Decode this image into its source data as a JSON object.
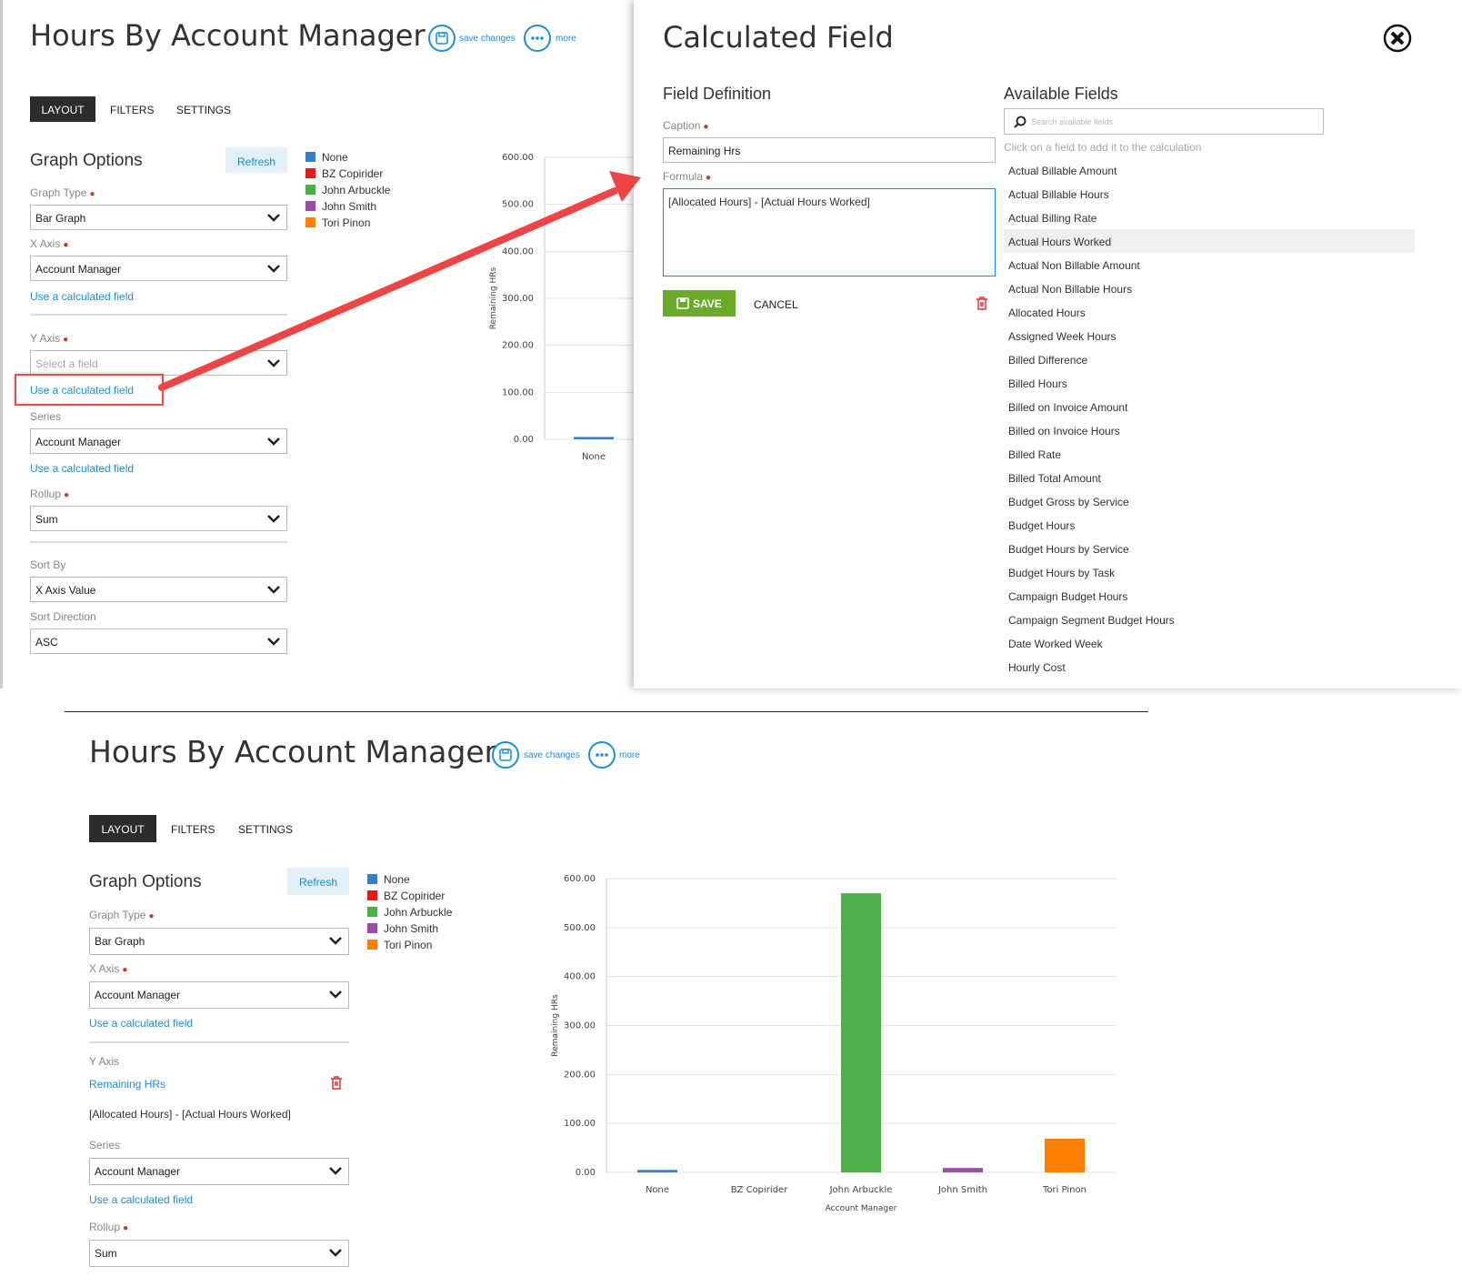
{
  "top": {
    "title": "Hours By Account Manager",
    "save_label": "save changes",
    "more_label": "more",
    "tabs": [
      "LAYOUT",
      "FILTERS",
      "SETTINGS"
    ],
    "graph_options": "Graph Options",
    "refresh": "Refresh",
    "graph_type": {
      "label": "Graph Type",
      "value": "Bar Graph"
    },
    "x_axis": {
      "label": "X Axis",
      "value": "Account Manager"
    },
    "calc_link": "Use a calculated field",
    "y_axis": {
      "label": "Y Axis",
      "placeholder": "Select a field"
    },
    "series": {
      "label": "Series",
      "value": "Account Manager"
    },
    "rollup": {
      "label": "Rollup",
      "value": "Sum"
    },
    "sort_by": {
      "label": "Sort By",
      "value": "X Axis Value"
    },
    "sort_direction": {
      "label": "Sort Direction",
      "value": "ASC"
    }
  },
  "legend": [
    "None",
    "BZ Copirider",
    "John Arbuckle",
    "John Smith",
    "Tori Pinon"
  ],
  "colors": {
    "none": "#3a7ebf",
    "bz": "#e31a1c",
    "arbuckle": "#4daf4a",
    "smith": "#984ea3",
    "tori": "#ff7f00",
    "accent": "#1e8fd3",
    "save_green": "#6aaa2a",
    "arrow_red": "#ef4444"
  },
  "calc_panel": {
    "title": "Calculated Field",
    "field_def": "Field Definition",
    "caption_label": "Caption",
    "caption_value": "Remaining Hrs",
    "formula_label": "Formula",
    "formula_value": "[Allocated Hours] - [Actual Hours Worked]",
    "save": "SAVE",
    "cancel": "CANCEL",
    "available_title": "Available Fields",
    "search_placeholder": "Search available fields",
    "hint": "Click on a field to add it to the calculation",
    "fields": [
      "Actual Billable Amount",
      "Actual Billable Hours",
      "Actual Billing Rate",
      "Actual Hours Worked",
      "Actual Non Billable Amount",
      "Actual Non Billable Hours",
      "Allocated Hours",
      "Assigned Week Hours",
      "Billed Difference",
      "Billed Hours",
      "Billed on Invoice Amount",
      "Billed on Invoice Hours",
      "Billed Rate",
      "Billed Total Amount",
      "Budget Gross by Service",
      "Budget Hours",
      "Budget Hours by Service",
      "Budget Hours by Task",
      "Campaign Budget Hours",
      "Campaign Segment Budget Hours",
      "Date Worked Week",
      "Hourly Cost"
    ],
    "highlighted_field": "Actual Hours Worked"
  },
  "bottom": {
    "title": "Hours By Account Manager",
    "save_label": "save changes",
    "more_label": "more",
    "tabs": [
      "LAYOUT",
      "FILTERS",
      "SETTINGS"
    ],
    "graph_options": "Graph Options",
    "refresh": "Refresh",
    "graph_type": {
      "label": "Graph Type",
      "value": "Bar Graph"
    },
    "x_axis": {
      "label": "X Axis",
      "value": "Account Manager"
    },
    "calc_link": "Use a calculated field",
    "y_axis_label": "Y Axis",
    "y_field_name": "Remaining HRs",
    "y_formula": "[Allocated Hours] - [Actual Hours Worked]",
    "series": {
      "label": "Series",
      "value": "Account Manager"
    },
    "rollup": {
      "label": "Rollup",
      "value": "Sum"
    }
  },
  "chart_data": [
    {
      "type": "bar",
      "title": "",
      "categories": [
        "None"
      ],
      "values": [
        5
      ],
      "ylabel": "Remaining HRs",
      "xlabel": "",
      "ylim": [
        0,
        600
      ],
      "yticks": [
        "0.00",
        "100.00",
        "200.00",
        "300.00",
        "400.00",
        "500.00",
        "600.00"
      ],
      "grid": true
    },
    {
      "type": "bar",
      "title": "",
      "categories": [
        "None",
        "BZ Copirider",
        "John Arbuckle",
        "John Smith",
        "Tori Pinon"
      ],
      "values": [
        5,
        0,
        570,
        9,
        69
      ],
      "ylabel": "Remaining HRs",
      "xlabel": "Account Manager",
      "ylim": [
        0,
        600
      ],
      "yticks": [
        "0.00",
        "100.00",
        "200.00",
        "300.00",
        "400.00",
        "500.00",
        "600.00"
      ],
      "grid": true
    }
  ]
}
